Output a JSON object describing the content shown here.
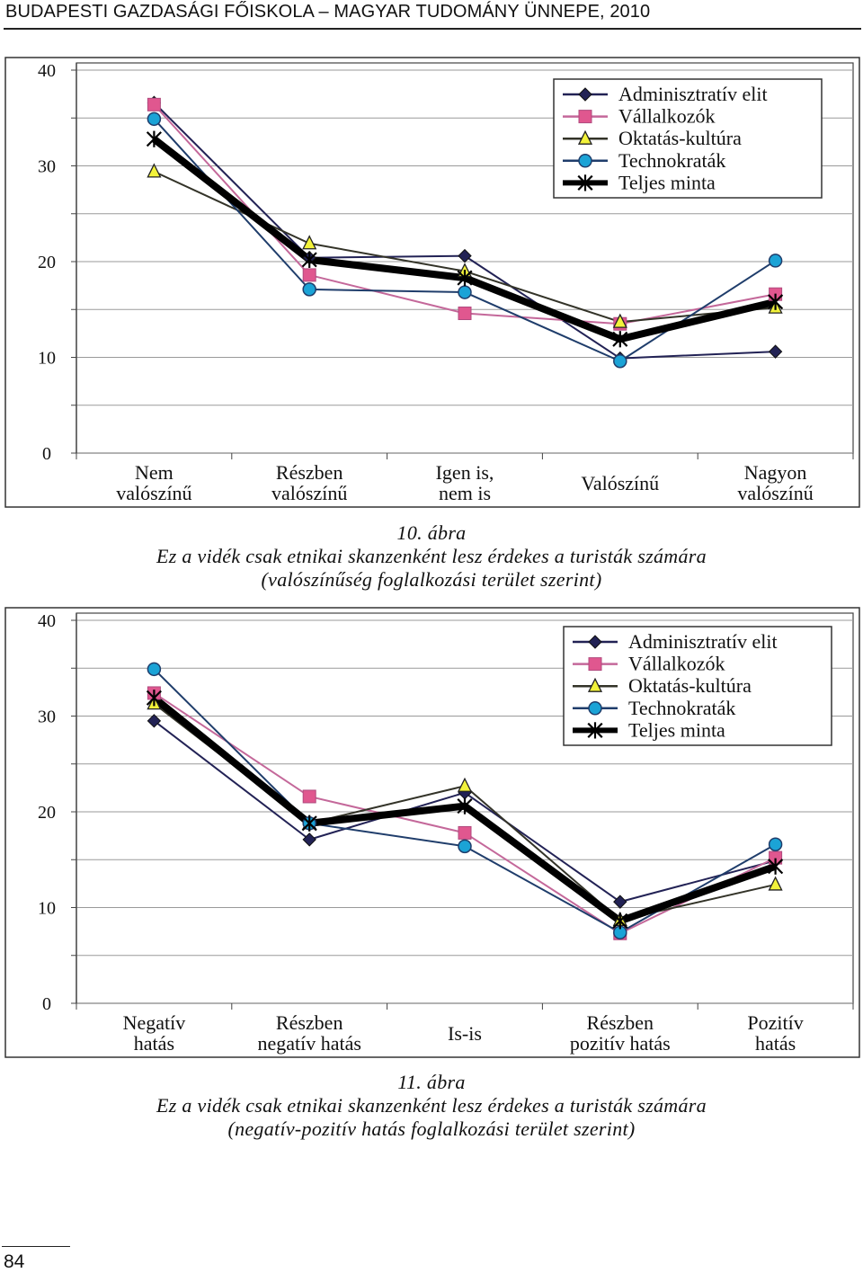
{
  "header": {
    "title": "BUDAPESTI GAZDASÁGI FŐISKOLA – MAGYAR TUDOMÁNY ÜNNEPE, 2010"
  },
  "page": {
    "number": "84"
  },
  "legend_styles": {
    "Adminisztratív elit": {
      "color": "#222255",
      "marker": "diamond",
      "fill": "#222255",
      "width": 2
    },
    "Vállalkozók": {
      "color": "#c4689a",
      "marker": "square",
      "fill": "#e0578f",
      "width": 2
    },
    "Oktatás-kultúra": {
      "color": "#333328",
      "marker": "triangle",
      "fill": "#f2f23a",
      "width": 2
    },
    "Technokraták": {
      "color": "#1f3d6b",
      "marker": "circle",
      "fill": "#1ba3d6",
      "width": 2
    },
    "Teljes minta": {
      "color": "#000000",
      "marker": "asterisk",
      "fill": "#000000",
      "width": 8
    }
  },
  "chart_data": [
    {
      "type": "line",
      "figure_number": "10. ábra",
      "title": "Ez a vidék csak etnikai skanzenként lesz érdekes a turisták számára",
      "subtitle": "(valószínűség foglalkozási terület szerint)",
      "categories": [
        [
          "Nem",
          "valószínű"
        ],
        [
          "Részben",
          "valószínű"
        ],
        [
          "Igen is,",
          "nem is"
        ],
        [
          "Valószínű"
        ],
        [
          "Nagyon",
          "valószínű"
        ]
      ],
      "ylim": [
        0,
        40
      ],
      "yticks": [
        0,
        10,
        20,
        30,
        40
      ],
      "grid": true,
      "legend_position": "top-right",
      "series": [
        {
          "name": "Adminisztratív elit",
          "values": [
            36.6,
            20.4,
            20.6,
            9.9,
            10.6
          ]
        },
        {
          "name": "Vállalkozók",
          "values": [
            36.4,
            18.6,
            14.6,
            13.5,
            16.6
          ]
        },
        {
          "name": "Oktatás-kultúra",
          "values": [
            29.4,
            21.9,
            19.0,
            13.7,
            15.2
          ]
        },
        {
          "name": "Technokraták",
          "values": [
            34.9,
            17.1,
            16.8,
            9.6,
            20.1
          ]
        },
        {
          "name": "Teljes minta",
          "values": [
            32.8,
            20.2,
            18.3,
            11.9,
            15.8
          ]
        }
      ]
    },
    {
      "type": "line",
      "figure_number": "11. ábra",
      "title": "Ez a vidék csak etnikai skanzenként lesz érdekes a turisták számára",
      "subtitle": "(negatív-pozitív hatás foglalkozási terület szerint)",
      "categories": [
        [
          "Negatív",
          "hatás"
        ],
        [
          "Részben",
          "negatív hatás"
        ],
        [
          "Is-is"
        ],
        [
          "Részben",
          "pozitív hatás"
        ],
        [
          "Pozitív",
          "hatás"
        ]
      ],
      "ylim": [
        0,
        40
      ],
      "yticks": [
        0,
        10,
        20,
        30,
        40
      ],
      "grid": true,
      "legend_position": "top-right",
      "series": [
        {
          "name": "Adminisztratív elit",
          "values": [
            29.5,
            17.1,
            22.0,
            10.6,
            14.9
          ]
        },
        {
          "name": "Vállalkozók",
          "values": [
            32.4,
            21.6,
            17.8,
            7.3,
            15.2
          ]
        },
        {
          "name": "Oktatás-kultúra",
          "values": [
            31.3,
            18.8,
            22.7,
            8.7,
            12.4
          ]
        },
        {
          "name": "Technokraták",
          "values": [
            34.9,
            18.8,
            16.4,
            7.4,
            16.6
          ]
        },
        {
          "name": "Teljes minta",
          "values": [
            31.9,
            18.8,
            20.6,
            8.6,
            14.3
          ]
        }
      ]
    }
  ]
}
